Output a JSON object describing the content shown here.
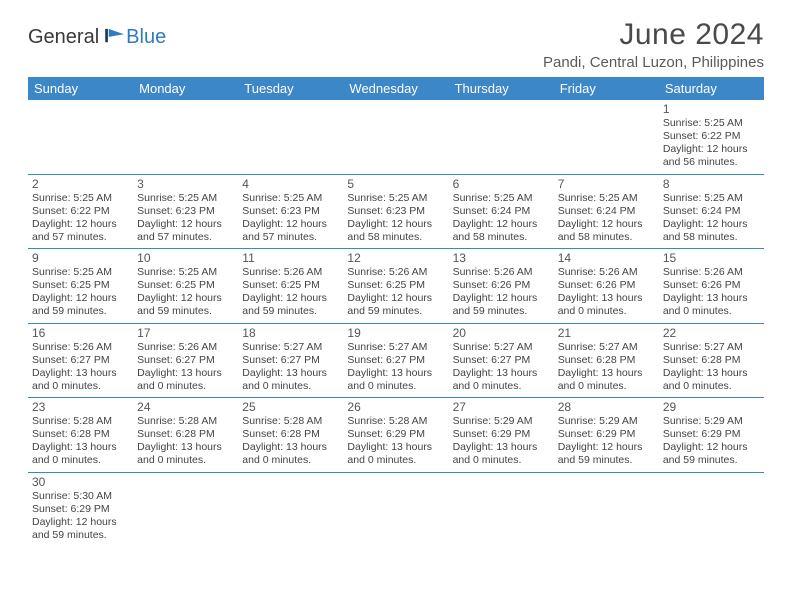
{
  "brand": {
    "general": "General",
    "blue": "Blue"
  },
  "title": "June 2024",
  "location": "Pandi, Central Luzon, Philippines",
  "colors": {
    "header_bg": "#3c87c7",
    "header_text": "#ffffff",
    "rule": "#3c87c7",
    "text": "#444444",
    "title_text": "#4a4a4a"
  },
  "day_headers": [
    "Sunday",
    "Monday",
    "Tuesday",
    "Wednesday",
    "Thursday",
    "Friday",
    "Saturday"
  ],
  "weeks": [
    [
      null,
      null,
      null,
      null,
      null,
      null,
      {
        "n": "1",
        "sunrise": "5:25 AM",
        "sunset": "6:22 PM",
        "daylight": "12 hours and 56 minutes."
      }
    ],
    [
      {
        "n": "2",
        "sunrise": "5:25 AM",
        "sunset": "6:22 PM",
        "daylight": "12 hours and 57 minutes."
      },
      {
        "n": "3",
        "sunrise": "5:25 AM",
        "sunset": "6:23 PM",
        "daylight": "12 hours and 57 minutes."
      },
      {
        "n": "4",
        "sunrise": "5:25 AM",
        "sunset": "6:23 PM",
        "daylight": "12 hours and 57 minutes."
      },
      {
        "n": "5",
        "sunrise": "5:25 AM",
        "sunset": "6:23 PM",
        "daylight": "12 hours and 58 minutes."
      },
      {
        "n": "6",
        "sunrise": "5:25 AM",
        "sunset": "6:24 PM",
        "daylight": "12 hours and 58 minutes."
      },
      {
        "n": "7",
        "sunrise": "5:25 AM",
        "sunset": "6:24 PM",
        "daylight": "12 hours and 58 minutes."
      },
      {
        "n": "8",
        "sunrise": "5:25 AM",
        "sunset": "6:24 PM",
        "daylight": "12 hours and 58 minutes."
      }
    ],
    [
      {
        "n": "9",
        "sunrise": "5:25 AM",
        "sunset": "6:25 PM",
        "daylight": "12 hours and 59 minutes."
      },
      {
        "n": "10",
        "sunrise": "5:25 AM",
        "sunset": "6:25 PM",
        "daylight": "12 hours and 59 minutes."
      },
      {
        "n": "11",
        "sunrise": "5:26 AM",
        "sunset": "6:25 PM",
        "daylight": "12 hours and 59 minutes."
      },
      {
        "n": "12",
        "sunrise": "5:26 AM",
        "sunset": "6:25 PM",
        "daylight": "12 hours and 59 minutes."
      },
      {
        "n": "13",
        "sunrise": "5:26 AM",
        "sunset": "6:26 PM",
        "daylight": "12 hours and 59 minutes."
      },
      {
        "n": "14",
        "sunrise": "5:26 AM",
        "sunset": "6:26 PM",
        "daylight": "13 hours and 0 minutes."
      },
      {
        "n": "15",
        "sunrise": "5:26 AM",
        "sunset": "6:26 PM",
        "daylight": "13 hours and 0 minutes."
      }
    ],
    [
      {
        "n": "16",
        "sunrise": "5:26 AM",
        "sunset": "6:27 PM",
        "daylight": "13 hours and 0 minutes."
      },
      {
        "n": "17",
        "sunrise": "5:26 AM",
        "sunset": "6:27 PM",
        "daylight": "13 hours and 0 minutes."
      },
      {
        "n": "18",
        "sunrise": "5:27 AM",
        "sunset": "6:27 PM",
        "daylight": "13 hours and 0 minutes."
      },
      {
        "n": "19",
        "sunrise": "5:27 AM",
        "sunset": "6:27 PM",
        "daylight": "13 hours and 0 minutes."
      },
      {
        "n": "20",
        "sunrise": "5:27 AM",
        "sunset": "6:27 PM",
        "daylight": "13 hours and 0 minutes."
      },
      {
        "n": "21",
        "sunrise": "5:27 AM",
        "sunset": "6:28 PM",
        "daylight": "13 hours and 0 minutes."
      },
      {
        "n": "22",
        "sunrise": "5:27 AM",
        "sunset": "6:28 PM",
        "daylight": "13 hours and 0 minutes."
      }
    ],
    [
      {
        "n": "23",
        "sunrise": "5:28 AM",
        "sunset": "6:28 PM",
        "daylight": "13 hours and 0 minutes."
      },
      {
        "n": "24",
        "sunrise": "5:28 AM",
        "sunset": "6:28 PM",
        "daylight": "13 hours and 0 minutes."
      },
      {
        "n": "25",
        "sunrise": "5:28 AM",
        "sunset": "6:28 PM",
        "daylight": "13 hours and 0 minutes."
      },
      {
        "n": "26",
        "sunrise": "5:28 AM",
        "sunset": "6:29 PM",
        "daylight": "13 hours and 0 minutes."
      },
      {
        "n": "27",
        "sunrise": "5:29 AM",
        "sunset": "6:29 PM",
        "daylight": "13 hours and 0 minutes."
      },
      {
        "n": "28",
        "sunrise": "5:29 AM",
        "sunset": "6:29 PM",
        "daylight": "12 hours and 59 minutes."
      },
      {
        "n": "29",
        "sunrise": "5:29 AM",
        "sunset": "6:29 PM",
        "daylight": "12 hours and 59 minutes."
      }
    ],
    [
      {
        "n": "30",
        "sunrise": "5:30 AM",
        "sunset": "6:29 PM",
        "daylight": "12 hours and 59 minutes."
      },
      null,
      null,
      null,
      null,
      null,
      null
    ]
  ],
  "labels": {
    "sunrise": "Sunrise: ",
    "sunset": "Sunset: ",
    "daylight": "Daylight: "
  }
}
